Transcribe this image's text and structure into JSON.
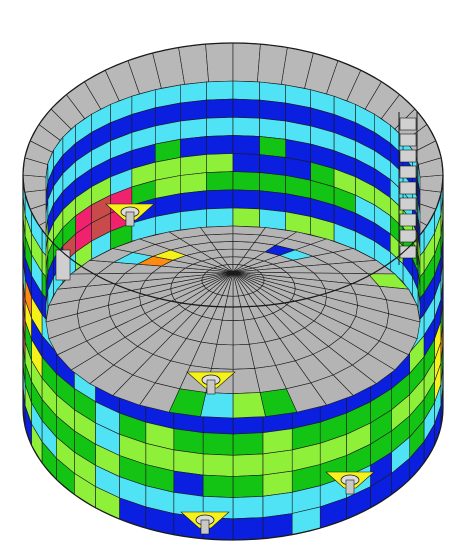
{
  "figure": {
    "kind": "finite-element contour plot of a cylindrical tank (open top, conical floor)",
    "palette": {
      "background": "#ffffff",
      "mesh_line": "#1a1a1a",
      "rim_gray": "#b8b8b8",
      "floor_gray": "#b4b4b4",
      "blue": "#0a1fe0",
      "cyan": "#4fe3f5",
      "green": "#14c414",
      "lime": "#8ff03a",
      "yellow": "#f4f21a",
      "orange": "#ff8a12",
      "red": "#c94a4a",
      "magenta": "#f0226e"
    },
    "features": {
      "inner_wall_bands": [
        "cyan",
        "blue",
        "cyan",
        "blue",
        "lime",
        "green",
        "blue",
        "cyan"
      ],
      "outer_wall_bands": [
        "cyan",
        "lime",
        "green",
        "blue",
        "cyan",
        "blue",
        "green",
        "lime",
        "green",
        "cyan",
        "blue"
      ],
      "nozzles": [
        "inner-wall-left",
        "floor-center-front",
        "outer-wall-right-lower",
        "outer-wall-bottom"
      ],
      "ladder": "inner-wall-right"
    }
  }
}
